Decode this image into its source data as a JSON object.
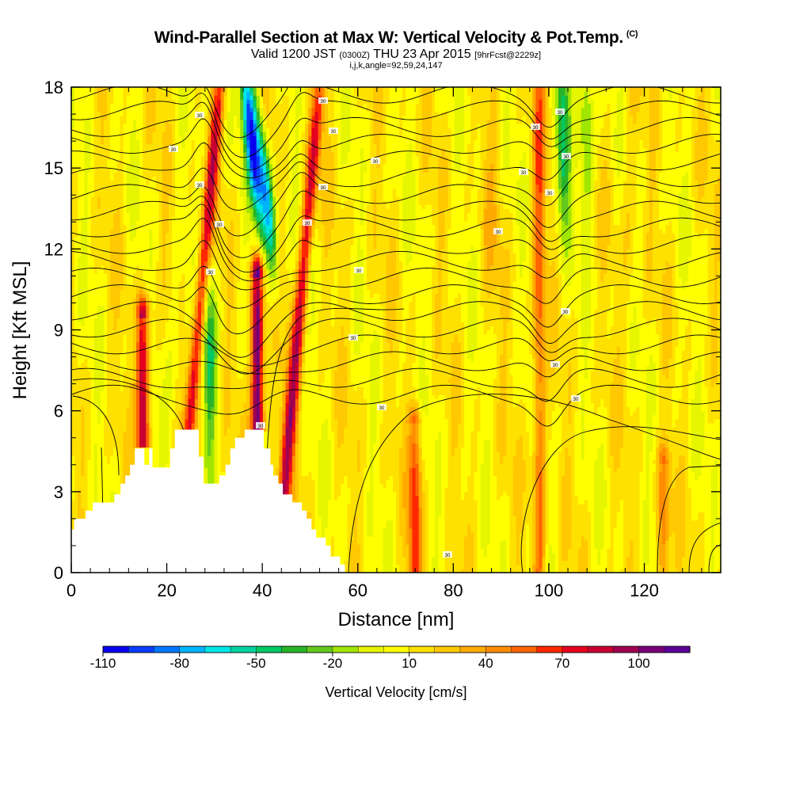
{
  "title": {
    "main": "Wind-Parallel Section at Max W: Vertical Velocity & Pot.Temp.",
    "mark": "(C)",
    "valid_a": "Valid 1200 JST",
    "valid_b": "(0300Z)",
    "valid_c": "THU 23 Apr 2015",
    "valid_d": "[9hrFcst@2229z]",
    "indices": "i,j,k,angle=92,59,24,147"
  },
  "chart_data": {
    "type": "heatmap",
    "xlabel": "Distance [nm]",
    "ylabel": "Height [Kft MSL]",
    "xlim": [
      0,
      136
    ],
    "ylim": [
      0,
      18
    ],
    "x_ticks": [
      "0",
      "20",
      "40",
      "60",
      "80",
      "100",
      "120"
    ],
    "y_ticks": [
      "0",
      "3",
      "6",
      "9",
      "12",
      "15",
      "18"
    ],
    "colorbar": {
      "label": "Vertical Velocity [cm/s]",
      "tick_labels": [
        "-110",
        "-80",
        "-50",
        "-20",
        "10",
        "40",
        "70",
        "100"
      ],
      "colors": [
        "#0a00f0",
        "#0a3cff",
        "#0078ff",
        "#00b4ff",
        "#00e6e6",
        "#00d2a0",
        "#00c864",
        "#28b428",
        "#64c81e",
        "#a0e600",
        "#e6f500",
        "#ffff00",
        "#ffe100",
        "#ffc800",
        "#ffaa00",
        "#ff8c00",
        "#ff6400",
        "#ff2800",
        "#e6001e",
        "#c80032",
        "#a00050",
        "#780078",
        "#5a0096"
      ]
    },
    "updraft_peaks": [
      {
        "x": 15,
        "z_top": 9.5,
        "w": 90
      },
      {
        "x": 28,
        "z_top": 18,
        "w": 70
      },
      {
        "x": 39,
        "z_top": 11,
        "w": 110
      },
      {
        "x": 49,
        "z_top": 18,
        "w": 70
      },
      {
        "x": 72,
        "z_top": 5.5,
        "w": 55
      },
      {
        "x": 98,
        "z_top": 18,
        "w": 45
      },
      {
        "x": 124,
        "z_top": 4,
        "w": 40
      }
    ],
    "downdraft_peaks": [
      {
        "x": 29,
        "z": 8,
        "w": -50
      },
      {
        "x": 40,
        "z": 16,
        "w": -110
      },
      {
        "x": 42,
        "z": 14,
        "w": -80
      },
      {
        "x": 103,
        "z": 16,
        "w": -60
      },
      {
        "x": 108,
        "z": 16,
        "w": -40
      }
    ],
    "contour_labels": [
      "30",
      "30",
      "30",
      "30",
      "30",
      "30",
      "30",
      "30",
      "30",
      "30",
      "30",
      "30",
      "30",
      "30",
      "30",
      "30",
      "30",
      "30",
      "30",
      "30",
      "30",
      "30",
      "30",
      "30"
    ]
  }
}
